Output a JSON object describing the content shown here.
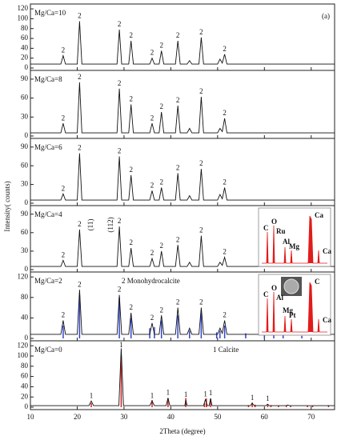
{
  "chart_data": [
    {
      "type": "line",
      "title": "Mg/Ca=10",
      "panel_label": "(a)",
      "ylabel": "Intensity( counts)",
      "color": "#111111",
      "xlim": [
        10,
        75
      ],
      "ylim": [
        0,
        125
      ],
      "yticks": [
        0,
        20,
        40,
        60,
        80,
        100,
        120
      ],
      "x": [
        10,
        16.5,
        17,
        17.5,
        20,
        20.5,
        21,
        28.5,
        29,
        29.5,
        31,
        31.5,
        32,
        35.5,
        36,
        36.5,
        37.5,
        38,
        38.5,
        41,
        41.5,
        42,
        43.5,
        44,
        44.5,
        46,
        46.5,
        47,
        50,
        50.5,
        51,
        51.5,
        52,
        75
      ],
      "values": [
        8,
        8,
        25,
        8,
        8,
        95,
        8,
        8,
        78,
        8,
        8,
        55,
        8,
        8,
        20,
        8,
        8,
        35,
        8,
        8,
        55,
        8,
        8,
        15,
        8,
        8,
        62,
        8,
        8,
        18,
        10,
        28,
        8,
        8
      ],
      "annotations": [
        {
          "x": 17,
          "text": "2"
        },
        {
          "x": 20.5,
          "text": "2"
        },
        {
          "x": 29,
          "text": "2"
        },
        {
          "x": 31.5,
          "text": "2"
        },
        {
          "x": 36,
          "text": "2"
        },
        {
          "x": 38,
          "text": "2"
        },
        {
          "x": 41.5,
          "text": "2"
        },
        {
          "x": 46.5,
          "text": "2"
        },
        {
          "x": 51.5,
          "text": "2"
        }
      ]
    },
    {
      "type": "line",
      "title": "Mg/Ca=8",
      "color": "#111111",
      "xlim": [
        10,
        75
      ],
      "ylim": [
        0,
        100
      ],
      "yticks": [
        0,
        30,
        60,
        90
      ],
      "x": [
        10,
        16.5,
        17,
        17.5,
        20,
        20.5,
        21,
        28.5,
        29,
        29.5,
        31,
        31.5,
        32,
        35.5,
        36,
        36.5,
        37.5,
        38,
        38.5,
        41,
        41.5,
        42,
        43.5,
        44,
        44.5,
        46,
        46.5,
        47,
        50,
        50.5,
        51,
        51.5,
        52,
        75
      ],
      "values": [
        5,
        5,
        20,
        5,
        5,
        85,
        5,
        5,
        75,
        5,
        5,
        50,
        5,
        5,
        20,
        5,
        5,
        38,
        5,
        5,
        48,
        5,
        5,
        12,
        5,
        5,
        62,
        5,
        5,
        12,
        7,
        28,
        5,
        5
      ],
      "annotations": [
        {
          "x": 17,
          "text": "2"
        },
        {
          "x": 20.5,
          "text": "2"
        },
        {
          "x": 29,
          "text": "2"
        },
        {
          "x": 31.5,
          "text": "2"
        },
        {
          "x": 36,
          "text": "2"
        },
        {
          "x": 38,
          "text": "2"
        },
        {
          "x": 41.5,
          "text": "2"
        },
        {
          "x": 46.5,
          "text": "2"
        },
        {
          "x": 51.5,
          "text": "2"
        }
      ]
    },
    {
      "type": "line",
      "title": "Mg/Ca=6",
      "color": "#111111",
      "xlim": [
        10,
        75
      ],
      "ylim": [
        0,
        100
      ],
      "yticks": [
        0,
        30,
        60,
        90
      ],
      "x": [
        10,
        16.5,
        17,
        17.5,
        20,
        20.5,
        21,
        28.5,
        29,
        29.5,
        31,
        31.5,
        32,
        35.5,
        36,
        36.5,
        37.5,
        38,
        38.5,
        41,
        41.5,
        42,
        43.5,
        44,
        44.5,
        46,
        46.5,
        47,
        50,
        50.5,
        51,
        51.5,
        52,
        75
      ],
      "values": [
        5,
        5,
        15,
        5,
        5,
        80,
        5,
        5,
        75,
        5,
        5,
        45,
        5,
        5,
        20,
        5,
        5,
        25,
        5,
        5,
        48,
        5,
        5,
        12,
        5,
        5,
        55,
        5,
        5,
        14,
        7,
        25,
        5,
        5
      ],
      "annotations": [
        {
          "x": 17,
          "text": "2"
        },
        {
          "x": 20.5,
          "text": "2"
        },
        {
          "x": 29,
          "text": "2"
        },
        {
          "x": 31.5,
          "text": "2"
        },
        {
          "x": 36,
          "text": "2"
        },
        {
          "x": 38,
          "text": "2"
        },
        {
          "x": 41.5,
          "text": "2"
        },
        {
          "x": 46.5,
          "text": "2"
        },
        {
          "x": 51.5,
          "text": "2"
        }
      ]
    },
    {
      "type": "line",
      "title": "Mg/Ca=4",
      "color": "#111111",
      "xlim": [
        10,
        75
      ],
      "ylim": [
        0,
        100
      ],
      "yticks": [
        0,
        30,
        60,
        90
      ],
      "x": [
        10,
        16.5,
        17,
        17.5,
        20,
        20.5,
        21,
        28.5,
        29,
        29.5,
        31,
        31.5,
        32,
        35.5,
        36,
        36.5,
        37.5,
        38,
        38.5,
        41,
        41.5,
        42,
        43.5,
        44,
        44.5,
        46,
        46.5,
        47,
        50,
        50.5,
        51,
        51.5,
        52,
        75
      ],
      "values": [
        5,
        5,
        15,
        5,
        5,
        65,
        5,
        5,
        70,
        5,
        5,
        35,
        5,
        5,
        18,
        5,
        5,
        30,
        5,
        5,
        40,
        5,
        5,
        12,
        5,
        5,
        55,
        5,
        5,
        12,
        7,
        20,
        5,
        5
      ],
      "annotations": [
        {
          "x": 17,
          "text": "2"
        },
        {
          "x": 20.5,
          "text": "2"
        },
        {
          "x": 29,
          "text": "2"
        },
        {
          "x": 31.5,
          "text": "2"
        },
        {
          "x": 36,
          "text": "2"
        },
        {
          "x": 38,
          "text": "2"
        },
        {
          "x": 41.5,
          "text": "2"
        },
        {
          "x": 46.5,
          "text": "2"
        },
        {
          "x": 51.5,
          "text": "2"
        }
      ],
      "notes": [
        {
          "x": 23,
          "text": "(11)"
        },
        {
          "x": 27.3,
          "text": "(112)"
        }
      ],
      "inset_labels": [
        "C",
        "O",
        "Ru",
        "Al",
        "Mg",
        "Ca",
        "Ca"
      ]
    },
    {
      "type": "line",
      "title": "Mg/Ca=2",
      "legend_note": "2 Monohydrocalcite",
      "color": "#111111",
      "xlim": [
        10,
        75
      ],
      "ylim": [
        0,
        125
      ],
      "yticks": [
        0,
        40,
        80,
        120
      ],
      "x": [
        10,
        16.5,
        17,
        17.5,
        20,
        20.5,
        21,
        28.5,
        29,
        29.5,
        31,
        31.5,
        32,
        35.5,
        36,
        36.5,
        37.5,
        38,
        38.5,
        41,
        41.5,
        42,
        43.5,
        44,
        44.5,
        46,
        46.5,
        47,
        50,
        50.5,
        51,
        51.5,
        52,
        75
      ],
      "values": [
        8,
        8,
        35,
        8,
        8,
        95,
        8,
        8,
        85,
        8,
        8,
        50,
        8,
        8,
        30,
        8,
        8,
        45,
        8,
        8,
        60,
        8,
        8,
        20,
        8,
        8,
        60,
        8,
        8,
        20,
        10,
        35,
        8,
        8
      ],
      "annotations": [
        {
          "x": 17,
          "text": "2"
        },
        {
          "x": 20.5,
          "text": "2"
        },
        {
          "x": 29,
          "text": "2"
        },
        {
          "x": 31.5,
          "text": "2"
        },
        {
          "x": 36,
          "text": "2"
        },
        {
          "x": 38,
          "text": "2"
        },
        {
          "x": 41.5,
          "text": "2"
        },
        {
          "x": 46.5,
          "text": "2"
        },
        {
          "x": 51.5,
          "text": "2"
        }
      ],
      "reference": {
        "color": "#3344cc",
        "x": [
          17,
          20.5,
          29,
          31.5,
          35.5,
          36.5,
          38,
          41.5,
          44,
          46.5,
          49.8,
          50.5,
          51.5,
          56,
          60,
          62,
          64,
          68
        ],
        "values": [
          25,
          85,
          80,
          40,
          20,
          22,
          35,
          45,
          15,
          50,
          12,
          15,
          25,
          10,
          8,
          10,
          6,
          5
        ]
      },
      "inset_labels": [
        "C",
        "O",
        "Al",
        "Mg",
        "Pt",
        "C",
        "Ca"
      ]
    },
    {
      "type": "line",
      "title": "Mg/Ca=0",
      "legend_note": "1 Calcite",
      "color": "#111111",
      "xlim": [
        10,
        75
      ],
      "ylim": [
        0,
        125
      ],
      "yticks": [
        0,
        20,
        40,
        60,
        80,
        100,
        120
      ],
      "xticks": [
        10,
        20,
        30,
        40,
        50,
        60,
        70
      ],
      "xlabel": "2Theta (degree)",
      "x": [
        10,
        22.5,
        23,
        23.5,
        28.9,
        29.4,
        29.9,
        35.5,
        36,
        36.5,
        39,
        39.4,
        39.8,
        43,
        43.2,
        43.5,
        47,
        47.4,
        47.8,
        48.2,
        48.5,
        48.8,
        57,
        57.4,
        57.8,
        60.3,
        60.7,
        61,
        64.6,
        65,
        65.4,
        75
      ],
      "values": [
        3,
        3,
        12,
        3,
        3,
        115,
        3,
        3,
        12,
        3,
        3,
        18,
        3,
        3,
        14,
        3,
        3,
        15,
        3,
        3,
        17,
        3,
        3,
        8,
        3,
        3,
        6,
        3,
        3,
        4,
        3,
        3
      ],
      "annotations": [
        {
          "x": 23,
          "text": "1"
        },
        {
          "x": 29.4,
          "text": "1"
        },
        {
          "x": 36,
          "text": "1"
        },
        {
          "x": 39.4,
          "text": "1"
        },
        {
          "x": 43.2,
          "text": "1"
        },
        {
          "x": 47.4,
          "text": "1"
        },
        {
          "x": 48.5,
          "text": "1"
        },
        {
          "x": 57.4,
          "text": "1"
        },
        {
          "x": 60.7,
          "text": "1"
        }
      ],
      "reference": {
        "color": "#cc2222",
        "x": [
          23,
          29.4,
          36,
          39.4,
          43.2,
          47.2,
          47.6,
          48.5,
          56.6,
          57.4,
          58,
          60.7,
          61.4,
          63,
          64.7,
          65.6,
          69.2,
          70.3,
          73.7
        ],
        "values": [
          8,
          100,
          14,
          18,
          18,
          8,
          17,
          17,
          4,
          9,
          5,
          6,
          4,
          3,
          4,
          3,
          3,
          3,
          4
        ]
      }
    }
  ]
}
